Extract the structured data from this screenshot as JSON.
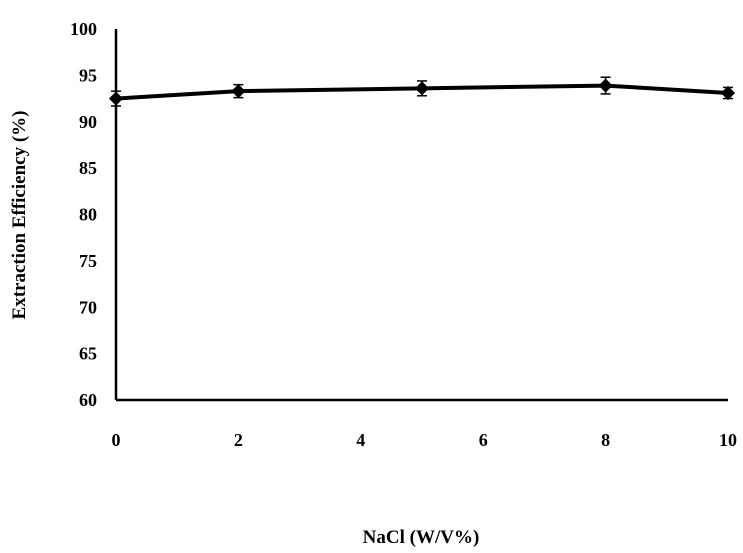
{
  "chart_data": {
    "type": "line",
    "title": "",
    "xlabel": "NaCl (W/V%)",
    "ylabel": "Extraction Efficiency (%)",
    "x": [
      0,
      2,
      5,
      8,
      10
    ],
    "series": [
      {
        "values": [
          92.5,
          93.3,
          93.6,
          93.9,
          93.1
        ],
        "errors": [
          0.8,
          0.7,
          0.8,
          0.9,
          0.6
        ]
      }
    ],
    "xlim": [
      0,
      10
    ],
    "ylim": [
      60,
      100
    ],
    "xticks": [
      0,
      2,
      4,
      6,
      8,
      10
    ],
    "yticks": [
      60,
      65,
      70,
      75,
      80,
      85,
      90,
      95,
      100
    ],
    "grid": false,
    "legend": "none",
    "line_color": "#000000"
  }
}
